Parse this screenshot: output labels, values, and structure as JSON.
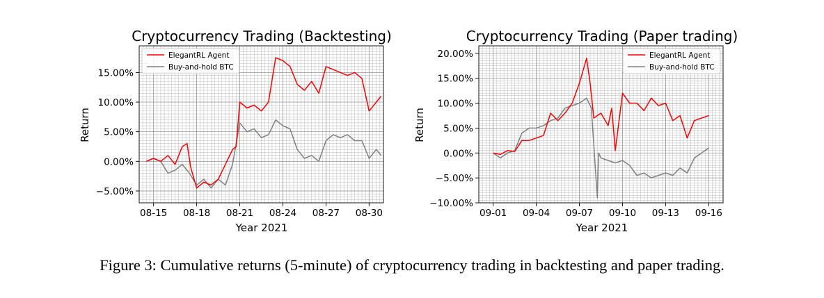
{
  "caption": "Figure 3: Cumulative returns (5-minute) of cryptocurrency trading in backtesting and paper trading.",
  "colors": {
    "agent": "#ff0000",
    "btc": "#808080",
    "grid": "#b0b0b0"
  },
  "chart_data": [
    {
      "type": "line",
      "title": "Cryptocurrency Trading (Backtesting)",
      "xlabel": "Year 2021",
      "ylabel": "Return",
      "x_range": [
        "2021-08-14",
        "2021-08-31"
      ],
      "ylim": [
        -0.07,
        0.195
      ],
      "xticks": [
        {
          "date": "2021-08-15",
          "label": "08-15"
        },
        {
          "date": "2021-08-18",
          "label": "08-18"
        },
        {
          "date": "2021-08-21",
          "label": "08-21"
        },
        {
          "date": "2021-08-24",
          "label": "08-24"
        },
        {
          "date": "2021-08-27",
          "label": "08-27"
        },
        {
          "date": "2021-08-30",
          "label": "08-30"
        }
      ],
      "yticks": [
        {
          "value": -0.05,
          "label": "−5.00%"
        },
        {
          "value": 0.0,
          "label": "0.00%"
        },
        {
          "value": 0.05,
          "label": "5.00%"
        },
        {
          "value": 0.1,
          "label": "10.00%"
        },
        {
          "value": 0.15,
          "label": "15.00%"
        }
      ],
      "grid": true,
      "legend_position": "top-left",
      "series": [
        {
          "name": "ElegantRL Agent",
          "color": "#ff0000",
          "points": [
            [
              "2021-08-14T12:00",
              0.0
            ],
            [
              "2021-08-15T00:00",
              0.005
            ],
            [
              "2021-08-15T12:00",
              0.0
            ],
            [
              "2021-08-16T00:00",
              0.01
            ],
            [
              "2021-08-16T12:00",
              -0.005
            ],
            [
              "2021-08-17T00:00",
              0.025
            ],
            [
              "2021-08-17T08:00",
              0.03
            ],
            [
              "2021-08-17T14:00",
              -0.01
            ],
            [
              "2021-08-18T00:00",
              -0.045
            ],
            [
              "2021-08-18T12:00",
              -0.035
            ],
            [
              "2021-08-19T00:00",
              -0.04
            ],
            [
              "2021-08-19T12:00",
              -0.03
            ],
            [
              "2021-08-20T00:00",
              -0.005
            ],
            [
              "2021-08-20T12:00",
              0.02
            ],
            [
              "2021-08-20T18:00",
              0.025
            ],
            [
              "2021-08-21T00:00",
              0.1
            ],
            [
              "2021-08-21T12:00",
              0.09
            ],
            [
              "2021-08-22T00:00",
              0.095
            ],
            [
              "2021-08-22T12:00",
              0.085
            ],
            [
              "2021-08-23T00:00",
              0.1
            ],
            [
              "2021-08-23T12:00",
              0.175
            ],
            [
              "2021-08-24T00:00",
              0.17
            ],
            [
              "2021-08-24T12:00",
              0.16
            ],
            [
              "2021-08-25T00:00",
              0.13
            ],
            [
              "2021-08-25T12:00",
              0.12
            ],
            [
              "2021-08-26T00:00",
              0.135
            ],
            [
              "2021-08-26T12:00",
              0.115
            ],
            [
              "2021-08-27T00:00",
              0.16
            ],
            [
              "2021-08-27T12:00",
              0.155
            ],
            [
              "2021-08-28T00:00",
              0.15
            ],
            [
              "2021-08-28T12:00",
              0.145
            ],
            [
              "2021-08-29T00:00",
              0.15
            ],
            [
              "2021-08-29T12:00",
              0.14
            ],
            [
              "2021-08-30T00:00",
              0.085
            ],
            [
              "2021-08-30T12:00",
              0.1
            ],
            [
              "2021-08-30T20:00",
              0.11
            ]
          ]
        },
        {
          "name": "Buy-and-hold BTC",
          "color": "#808080",
          "points": [
            [
              "2021-08-14T12:00",
              0.0
            ],
            [
              "2021-08-15T00:00",
              0.005
            ],
            [
              "2021-08-15T12:00",
              0.0
            ],
            [
              "2021-08-16T00:00",
              -0.02
            ],
            [
              "2021-08-16T12:00",
              -0.015
            ],
            [
              "2021-08-17T00:00",
              -0.005
            ],
            [
              "2021-08-17T12:00",
              -0.02
            ],
            [
              "2021-08-18T00:00",
              -0.04
            ],
            [
              "2021-08-18T12:00",
              -0.03
            ],
            [
              "2021-08-19T00:00",
              -0.045
            ],
            [
              "2021-08-19T12:00",
              -0.03
            ],
            [
              "2021-08-20T00:00",
              -0.04
            ],
            [
              "2021-08-20T12:00",
              -0.005
            ],
            [
              "2021-08-21T00:00",
              0.065
            ],
            [
              "2021-08-21T12:00",
              0.05
            ],
            [
              "2021-08-22T00:00",
              0.055
            ],
            [
              "2021-08-22T12:00",
              0.04
            ],
            [
              "2021-08-23T00:00",
              0.045
            ],
            [
              "2021-08-23T12:00",
              0.07
            ],
            [
              "2021-08-24T00:00",
              0.06
            ],
            [
              "2021-08-24T12:00",
              0.055
            ],
            [
              "2021-08-25T00:00",
              0.02
            ],
            [
              "2021-08-25T12:00",
              0.005
            ],
            [
              "2021-08-26T00:00",
              0.01
            ],
            [
              "2021-08-26T12:00",
              0.0
            ],
            [
              "2021-08-27T00:00",
              0.035
            ],
            [
              "2021-08-27T12:00",
              0.045
            ],
            [
              "2021-08-28T00:00",
              0.04
            ],
            [
              "2021-08-28T12:00",
              0.045
            ],
            [
              "2021-08-29T00:00",
              0.035
            ],
            [
              "2021-08-29T12:00",
              0.035
            ],
            [
              "2021-08-30T00:00",
              0.005
            ],
            [
              "2021-08-30T12:00",
              0.02
            ],
            [
              "2021-08-30T20:00",
              0.01
            ]
          ]
        }
      ]
    },
    {
      "type": "line",
      "title": "Cryptocurrency Trading (Paper trading)",
      "xlabel": "Year 2021",
      "ylabel": "Return",
      "x_range": [
        "2021-08-31",
        "2021-09-17"
      ],
      "ylim": [
        -0.1,
        0.215
      ],
      "xticks": [
        {
          "date": "2021-09-01",
          "label": "09-01"
        },
        {
          "date": "2021-09-04",
          "label": "09-04"
        },
        {
          "date": "2021-09-07",
          "label": "09-07"
        },
        {
          "date": "2021-09-10",
          "label": "09-10"
        },
        {
          "date": "2021-09-13",
          "label": "09-13"
        },
        {
          "date": "2021-09-16",
          "label": "09-16"
        }
      ],
      "yticks": [
        {
          "value": -0.1,
          "label": "−10.00%"
        },
        {
          "value": -0.05,
          "label": "−5.00%"
        },
        {
          "value": 0.0,
          "label": "0.00%"
        },
        {
          "value": 0.05,
          "label": "5.00%"
        },
        {
          "value": 0.1,
          "label": "10.00%"
        },
        {
          "value": 0.15,
          "label": "15.00%"
        },
        {
          "value": 0.2,
          "label": "20.00%"
        }
      ],
      "grid": true,
      "legend_position": "top-right",
      "series": [
        {
          "name": "ElegantRL Agent",
          "color": "#ff0000",
          "points": [
            [
              "2021-09-01T00:00",
              0.0
            ],
            [
              "2021-09-01T12:00",
              -0.003
            ],
            [
              "2021-09-02T00:00",
              0.005
            ],
            [
              "2021-09-02T12:00",
              0.003
            ],
            [
              "2021-09-03T00:00",
              0.025
            ],
            [
              "2021-09-03T12:00",
              0.025
            ],
            [
              "2021-09-04T00:00",
              0.03
            ],
            [
              "2021-09-04T12:00",
              0.035
            ],
            [
              "2021-09-05T00:00",
              0.08
            ],
            [
              "2021-09-05T12:00",
              0.065
            ],
            [
              "2021-09-06T00:00",
              0.08
            ],
            [
              "2021-09-06T12:00",
              0.1
            ],
            [
              "2021-09-07T00:00",
              0.14
            ],
            [
              "2021-09-07T12:00",
              0.19
            ],
            [
              "2021-09-07T18:00",
              0.14
            ],
            [
              "2021-09-08T00:00",
              0.07
            ],
            [
              "2021-09-08T12:00",
              0.08
            ],
            [
              "2021-09-09T00:00",
              0.055
            ],
            [
              "2021-09-09T06:00",
              0.09
            ],
            [
              "2021-09-09T12:00",
              0.005
            ],
            [
              "2021-09-10T00:00",
              0.12
            ],
            [
              "2021-09-10T12:00",
              0.1
            ],
            [
              "2021-09-11T00:00",
              0.1
            ],
            [
              "2021-09-11T12:00",
              0.085
            ],
            [
              "2021-09-12T00:00",
              0.11
            ],
            [
              "2021-09-12T12:00",
              0.095
            ],
            [
              "2021-09-13T00:00",
              0.1
            ],
            [
              "2021-09-13T12:00",
              0.065
            ],
            [
              "2021-09-14T00:00",
              0.075
            ],
            [
              "2021-09-14T12:00",
              0.03
            ],
            [
              "2021-09-15T00:00",
              0.065
            ],
            [
              "2021-09-15T12:00",
              0.07
            ],
            [
              "2021-09-16T00:00",
              0.075
            ]
          ]
        },
        {
          "name": "Buy-and-hold BTC",
          "color": "#808080",
          "points": [
            [
              "2021-09-01T00:00",
              0.0
            ],
            [
              "2021-09-01T12:00",
              -0.01
            ],
            [
              "2021-09-02T00:00",
              0.0
            ],
            [
              "2021-09-02T12:00",
              0.005
            ],
            [
              "2021-09-03T00:00",
              0.04
            ],
            [
              "2021-09-03T12:00",
              0.05
            ],
            [
              "2021-09-04T00:00",
              0.05
            ],
            [
              "2021-09-04T12:00",
              0.055
            ],
            [
              "2021-09-05T00:00",
              0.065
            ],
            [
              "2021-09-05T12:00",
              0.07
            ],
            [
              "2021-09-06T00:00",
              0.09
            ],
            [
              "2021-09-06T12:00",
              0.095
            ],
            [
              "2021-09-07T00:00",
              0.1
            ],
            [
              "2021-09-07T12:00",
              0.11
            ],
            [
              "2021-09-07T20:00",
              0.09
            ],
            [
              "2021-09-08T06:00",
              -0.09
            ],
            [
              "2021-09-08T08:00",
              0.0
            ],
            [
              "2021-09-08T12:00",
              -0.01
            ],
            [
              "2021-09-09T00:00",
              -0.015
            ],
            [
              "2021-09-09T12:00",
              -0.02
            ],
            [
              "2021-09-10T00:00",
              -0.015
            ],
            [
              "2021-09-10T12:00",
              -0.025
            ],
            [
              "2021-09-11T00:00",
              -0.045
            ],
            [
              "2021-09-11T12:00",
              -0.04
            ],
            [
              "2021-09-12T00:00",
              -0.05
            ],
            [
              "2021-09-12T12:00",
              -0.045
            ],
            [
              "2021-09-13T00:00",
              -0.04
            ],
            [
              "2021-09-13T12:00",
              -0.045
            ],
            [
              "2021-09-14T00:00",
              -0.03
            ],
            [
              "2021-09-14T12:00",
              -0.04
            ],
            [
              "2021-09-15T00:00",
              -0.01
            ],
            [
              "2021-09-15T12:00",
              0.0
            ],
            [
              "2021-09-16T00:00",
              0.01
            ]
          ]
        }
      ]
    }
  ]
}
